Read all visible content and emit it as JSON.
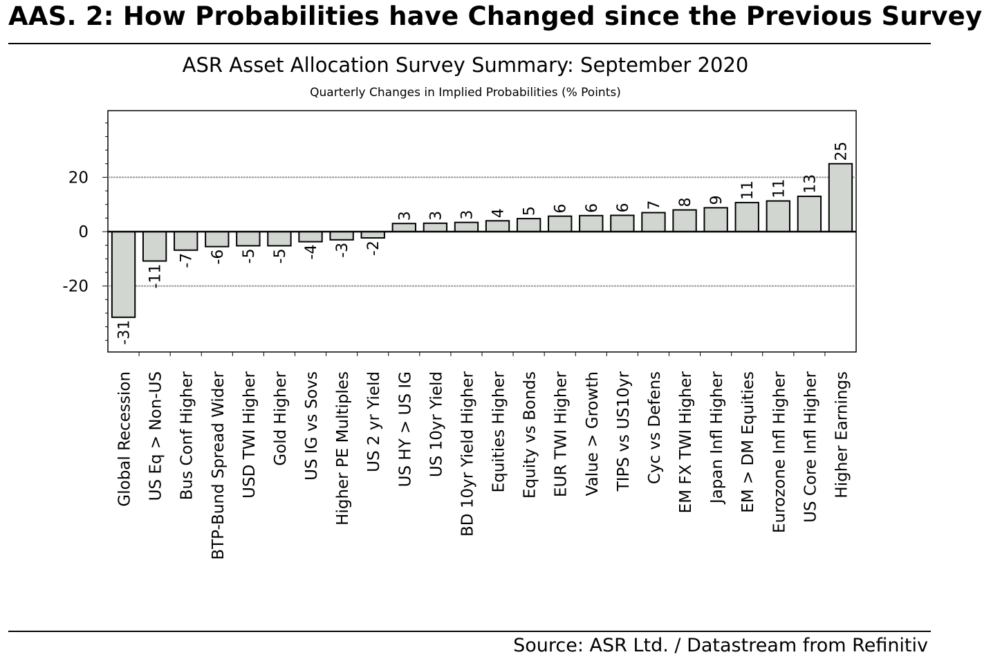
{
  "header": {
    "title": "AAS. 2:  How Probabilities have Changed since the Previous Survey"
  },
  "footer": {
    "source": "Source: ASR Ltd. / Datastream from Refinitiv"
  },
  "chart_data": {
    "type": "bar",
    "title": "ASR Asset Allocation Survey Summary: September 2020",
    "subtitle": "Quarterly Changes in Implied Probabilities (% Points)",
    "xlabel": "",
    "ylabel": "",
    "ylim": [
      -44,
      44
    ],
    "yticks": [
      -20,
      0,
      20
    ],
    "ytick_labels": [
      "-20",
      "0",
      "20"
    ],
    "grid": "horizontal dashed at -20 and 20",
    "legend": "none",
    "categories": [
      "Global Recession",
      "US Eq > Non-US",
      "Bus Conf Higher",
      "BTP-Bund Spread Wider",
      "USD TWI Higher",
      "Gold Higher",
      "US IG vs Sovs",
      "Higher PE Multiples",
      "US 2 yr Yield",
      "US HY > US IG",
      "US 10yr Yield",
      "BD 10yr Yield Higher",
      "Equities Higher",
      "Equity vs Bonds",
      "EUR TWI Higher",
      "Value > Growth",
      "TIPS vs US10yr",
      "Cyc vs Defens",
      "EM FX TWI Higher",
      "Japan Infl Higher",
      "EM > DM Equities",
      "Eurozone Infl Higher",
      "US Core Infl Higher",
      "Higher Earnings"
    ],
    "values": [
      -31.5,
      -10.8,
      -6.8,
      -5.5,
      -5.2,
      -5.2,
      -3.7,
      -3.0,
      -2.3,
      3.0,
      3.1,
      3.4,
      4.0,
      4.8,
      5.7,
      5.9,
      6.0,
      7.0,
      8.0,
      8.8,
      10.7,
      11.3,
      13.0,
      25.0
    ],
    "data_labels": [
      "-31",
      "-11",
      "-7",
      "-6",
      "-5",
      "-5",
      "-4",
      "-3",
      "-2",
      "3",
      "3",
      "3",
      "4",
      "5",
      "6",
      "6",
      "6",
      "7",
      "8",
      "9",
      "11",
      "11",
      "13",
      "25"
    ],
    "colors": {
      "bar_fill": "#d1d6d1",
      "bar_stroke": "#000000",
      "grid": "#9a9a9a"
    }
  }
}
